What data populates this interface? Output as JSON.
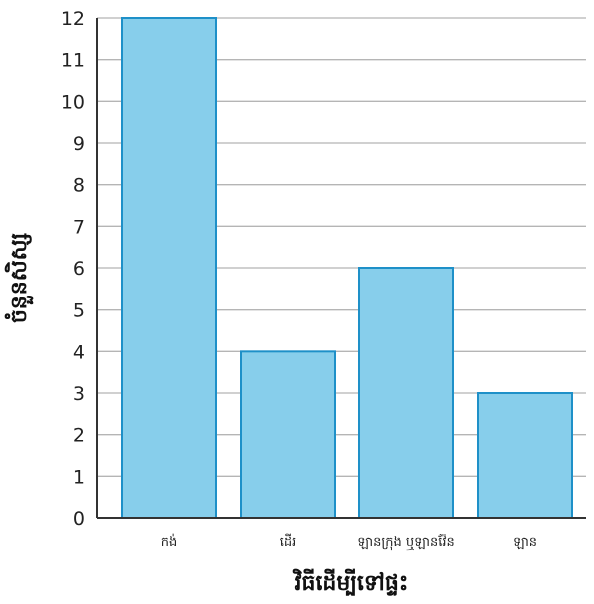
{
  "chart_data": {
    "type": "bar",
    "categories": [
      "កង់",
      "ដើរ",
      "ឡានក្រុង ឬឡានវ៉ែន",
      "ឡាន"
    ],
    "values": [
      12,
      4,
      6,
      3
    ],
    "title": "",
    "xlabel": "វិធីដើម្បីទៅផ្ទះ",
    "ylabel": "ចំនួនសិស្ស",
    "ylim": [
      0,
      12
    ],
    "yticks": [
      0,
      1,
      2,
      3,
      4,
      5,
      6,
      7,
      8,
      9,
      10,
      11,
      12
    ],
    "grid": true,
    "bar_color": "#87CEEB",
    "bar_edge_color": "#1E90C8"
  }
}
